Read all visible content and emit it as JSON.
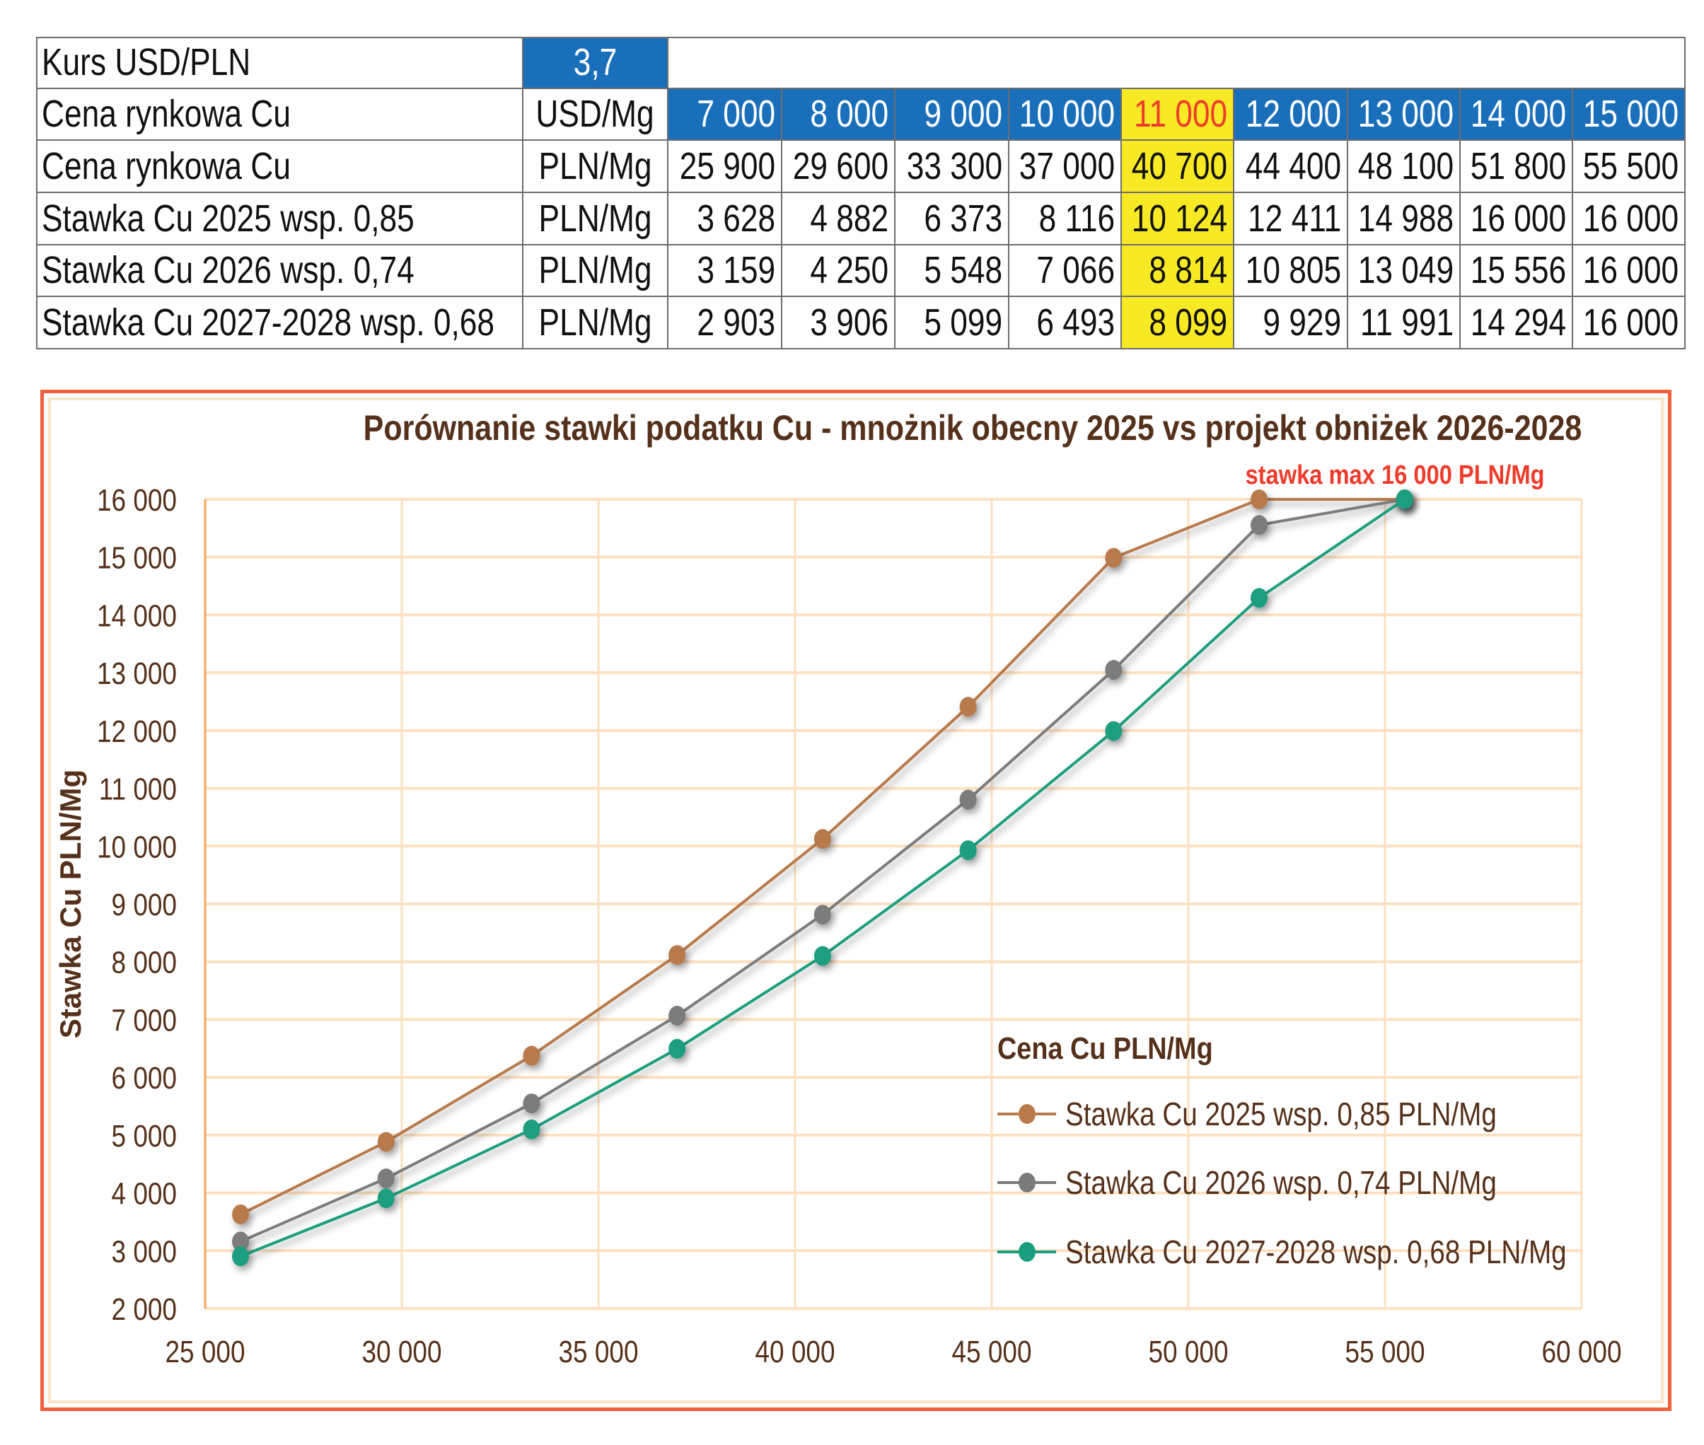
{
  "table": {
    "rows": [
      {
        "label": "Kurs USD/PLN",
        "unit": "3,7",
        "values": []
      },
      {
        "label": "Cena rynkowa Cu",
        "unit": "USD/Mg",
        "values": [
          "7 000",
          "8 000",
          "9 000",
          "10 000",
          "11 000",
          "12 000",
          "13 000",
          "14 000",
          "15 000"
        ]
      },
      {
        "label": "Cena rynkowa Cu",
        "unit": "PLN/Mg",
        "values": [
          "25 900",
          "29 600",
          "33 300",
          "37 000",
          "40 700",
          "44 400",
          "48 100",
          "51 800",
          "55 500"
        ]
      },
      {
        "label": "Stawka Cu 2025 wsp. 0,85",
        "unit": "PLN/Mg",
        "values": [
          "3 628",
          "4 882",
          "6 373",
          "8 116",
          "10 124",
          "12 411",
          "14 988",
          "16 000",
          "16 000"
        ]
      },
      {
        "label": "Stawka Cu 2026 wsp. 0,74",
        "unit": "PLN/Mg",
        "values": [
          "3 159",
          "4 250",
          "5 548",
          "7 066",
          "8 814",
          "10 805",
          "13 049",
          "15 556",
          "16 000"
        ]
      },
      {
        "label": "Stawka Cu 2027-2028 wsp. 0,68",
        "unit": "PLN/Mg",
        "values": [
          "2 903",
          "3 906",
          "5 099",
          "6 493",
          "8 099",
          "9 929",
          "11 991",
          "14 294",
          "16 000"
        ]
      }
    ],
    "highlight_column_index": 4,
    "colors": {
      "header_blue": "#1a6fba",
      "highlight_yellow": "#f8e925",
      "highlight_red_text": "#ee3b2b"
    }
  },
  "chart_data": {
    "type": "line",
    "title": "Porównanie stawki podatku Cu - mnożnik obecny 2025 vs projekt obniżek 2026-2028",
    "annotation": "stawka max 16 000 PLN/Mg",
    "xlabel": "",
    "ylabel": "Stawka Cu PLN/Mg",
    "xlim": [
      25000,
      60000
    ],
    "ylim": [
      2000,
      16000
    ],
    "x_ticks": [
      25000,
      30000,
      35000,
      40000,
      45000,
      50000,
      55000,
      60000
    ],
    "x_tick_labels": [
      "25 000",
      "30 000",
      "35 000",
      "40 000",
      "45 000",
      "50 000",
      "55 000",
      "60 000"
    ],
    "y_ticks": [
      2000,
      3000,
      4000,
      5000,
      6000,
      7000,
      8000,
      9000,
      10000,
      11000,
      12000,
      13000,
      14000,
      15000,
      16000
    ],
    "y_tick_labels": [
      "2 000",
      "3 000",
      "4 000",
      "5 000",
      "6 000",
      "7 000",
      "8 000",
      "9 000",
      "10 000",
      "11 000",
      "12 000",
      "13 000",
      "14 000",
      "15 000",
      "16 000"
    ],
    "grid": true,
    "legend_title": "Cena Cu PLN/Mg",
    "legend_position": "bottom-right",
    "x": [
      25900,
      29600,
      33300,
      37000,
      40700,
      44400,
      48100,
      51800,
      55500
    ],
    "series": [
      {
        "name": "Stawka Cu 2025 wsp. 0,85 PLN/Mg",
        "color": "#b87a4b",
        "values": [
          3628,
          4882,
          6373,
          8116,
          10124,
          12411,
          14988,
          16000,
          16000
        ]
      },
      {
        "name": "Stawka Cu 2026 wsp. 0,74 PLN/Mg",
        "color": "#7b7b7b",
        "values": [
          3159,
          4250,
          5548,
          7066,
          8814,
          10805,
          13049,
          15556,
          16000
        ]
      },
      {
        "name": "Stawka Cu 2027-2028 wsp. 0,68 PLN/Mg",
        "color": "#1a9e7f",
        "values": [
          2903,
          3906,
          5099,
          6493,
          8099,
          9929,
          11991,
          14294,
          16000
        ]
      }
    ],
    "colors": {
      "text": "#55301a",
      "annotation": "#ee3b2b",
      "grid": "#fde0c0",
      "axis": "#f5a65b",
      "frame": "#f0603a"
    }
  }
}
